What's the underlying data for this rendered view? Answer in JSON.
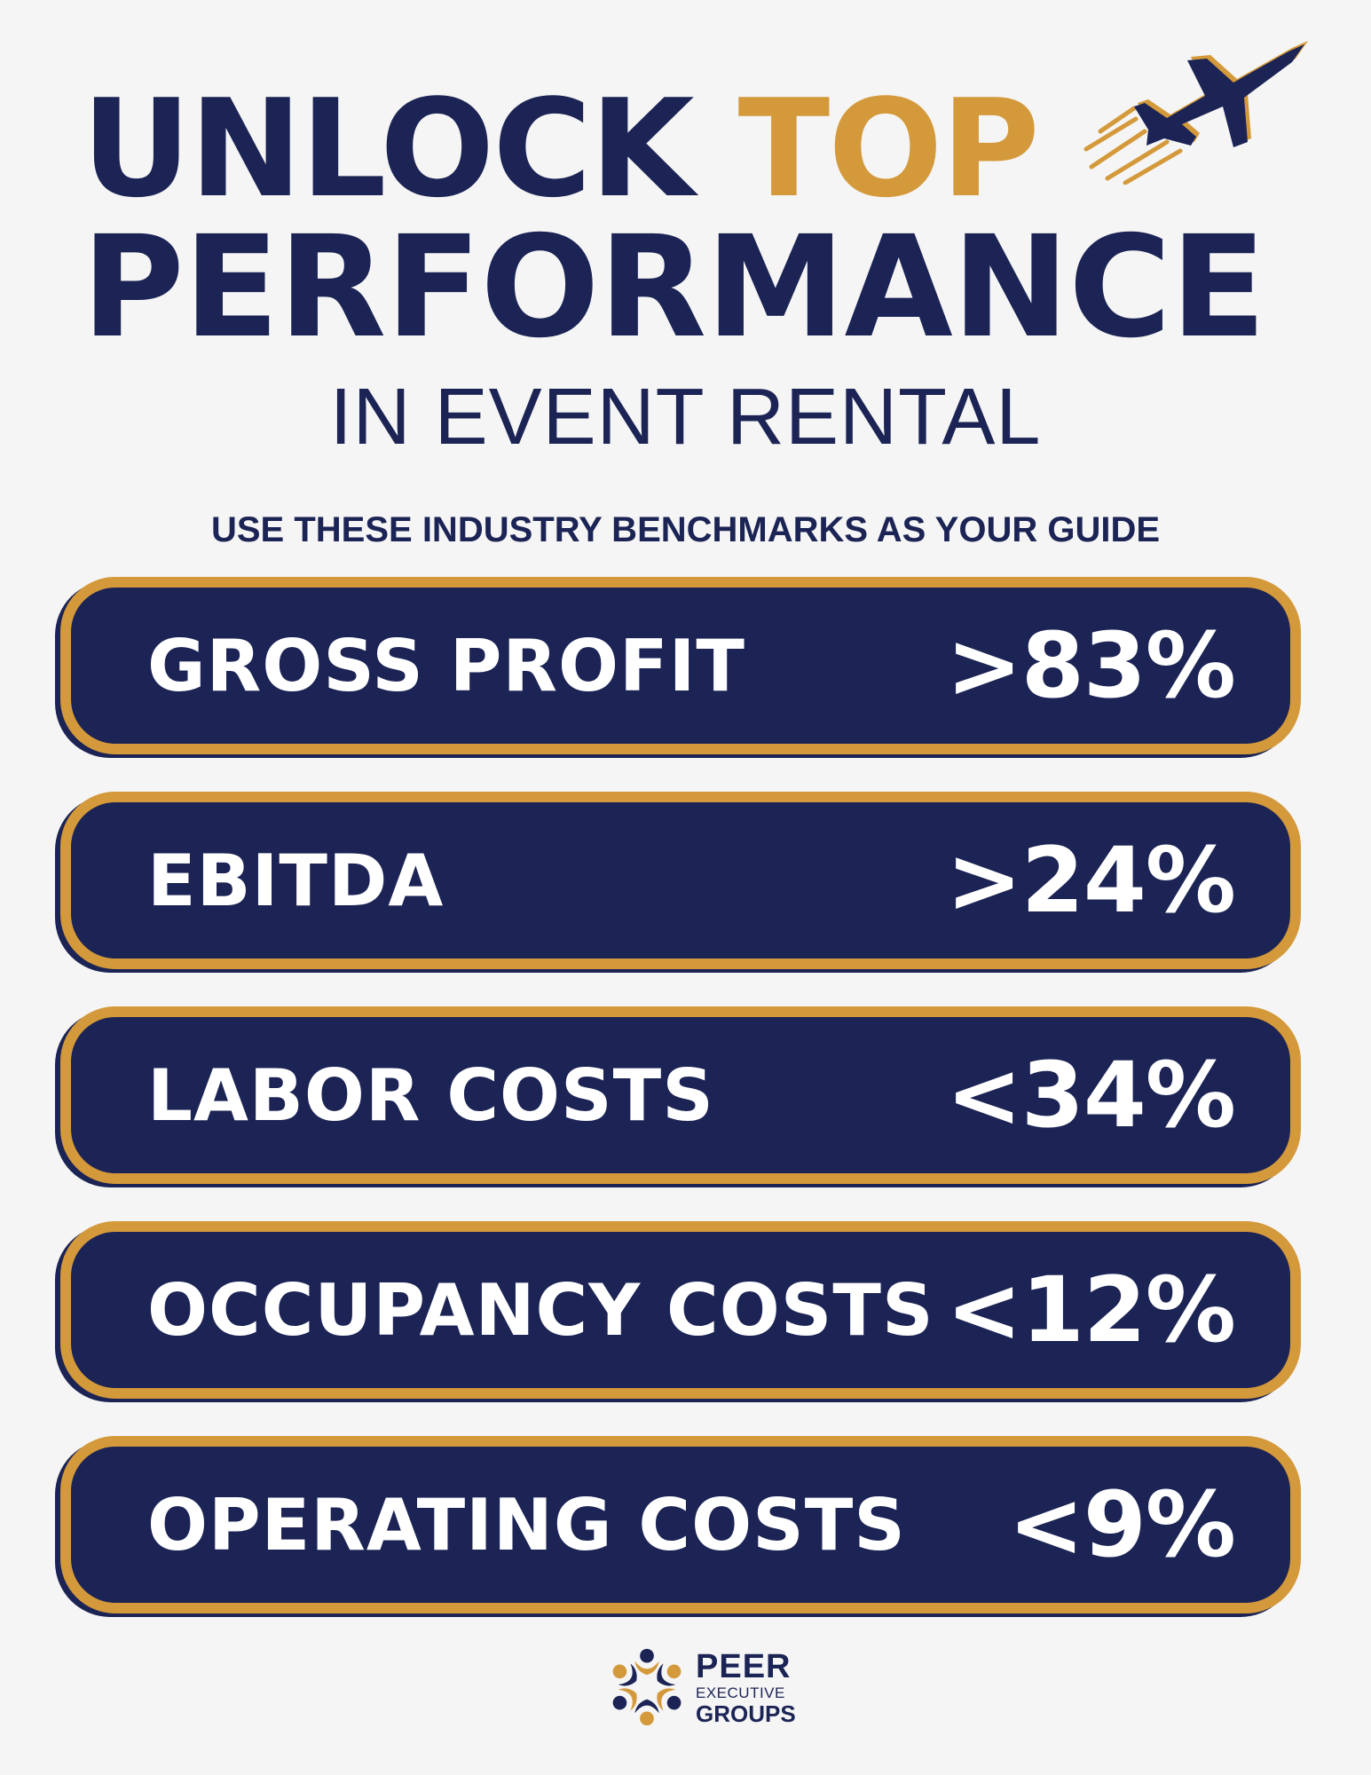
{
  "header": {
    "title_part1": "UNLOCK",
    "title_accent": "TOP",
    "title_line2": "PERFORMANCE",
    "subtitle": "IN EVENT RENTAL",
    "tagline": "USE THESE INDUSTRY BENCHMARKS AS YOUR GUIDE",
    "icon": "jet-icon"
  },
  "benchmarks": [
    {
      "label": "GROSS PROFIT",
      "value": ">83%"
    },
    {
      "label": "EBITDA",
      "value": ">24%"
    },
    {
      "label": "LABOR COSTS",
      "value": "<34%"
    },
    {
      "label": "OCCUPANCY COSTS",
      "value": "<12%"
    },
    {
      "label": "OPERATING COSTS",
      "value": "<9%"
    }
  ],
  "logo": {
    "line1": "PEER",
    "line2": "EXECUTIVE",
    "line3": "GROUPS",
    "icon": "peer-groups-logo-icon"
  },
  "colors": {
    "navy": "#1c2455",
    "gold": "#d4993a",
    "background": "#f5f5f5",
    "text_light": "#ffffff"
  }
}
